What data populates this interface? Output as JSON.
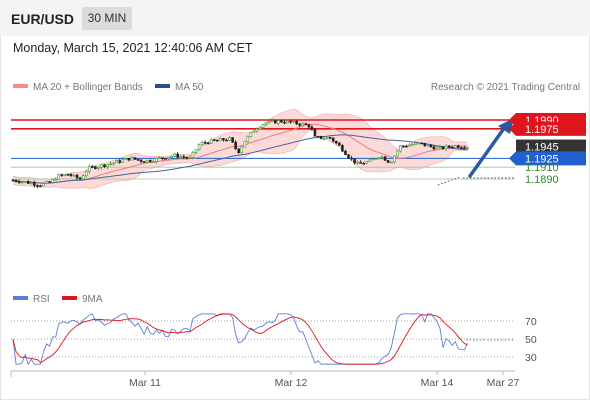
{
  "header": {
    "pair": "EUR/USD",
    "timeframe": "30 MIN"
  },
  "datetime": "Monday, March 15, 2021 12:40:06 AM CET",
  "legend": {
    "ma20": {
      "label": "MA 20 + Bollinger Bands",
      "color": "#f28b8b"
    },
    "ma50": {
      "label": "MA 50",
      "color": "#2b4f8c"
    }
  },
  "copyright": "Research © 2021 Trading Central",
  "levels": [
    {
      "label": "1.1990",
      "price": 1.199,
      "style": "red-box",
      "color": "#e0141c"
    },
    {
      "label": "1.1975",
      "price": 1.1975,
      "style": "red-box",
      "color": "#e0141c"
    },
    {
      "label": "1.1945",
      "price": 1.1945,
      "style": "dark-box",
      "color": "#333333"
    },
    {
      "label": "1.1925",
      "price": 1.1925,
      "style": "blue-box",
      "color": "#1f5fd0"
    },
    {
      "label": "1.1910",
      "price": 1.191,
      "style": "green-text",
      "color": "#2e8b2e"
    },
    {
      "label": "1.1890",
      "price": 1.189,
      "style": "green-text",
      "color": "#2e8b2e"
    }
  ],
  "rsi": {
    "legend_rsi": "RSI",
    "legend_ma": "9MA",
    "rsi_color": "#5b7fd8",
    "ma_color": "#e0141c",
    "levels": [
      "70",
      "50",
      "30"
    ]
  },
  "x_labels": [
    "Mar 11",
    "Mar 12",
    "Mar 14",
    "Mar 27"
  ],
  "colors": {
    "up": "#2e9e2e",
    "down": "#222222",
    "band": "#fbd4d4",
    "arrow": "#2b5aa0"
  }
}
